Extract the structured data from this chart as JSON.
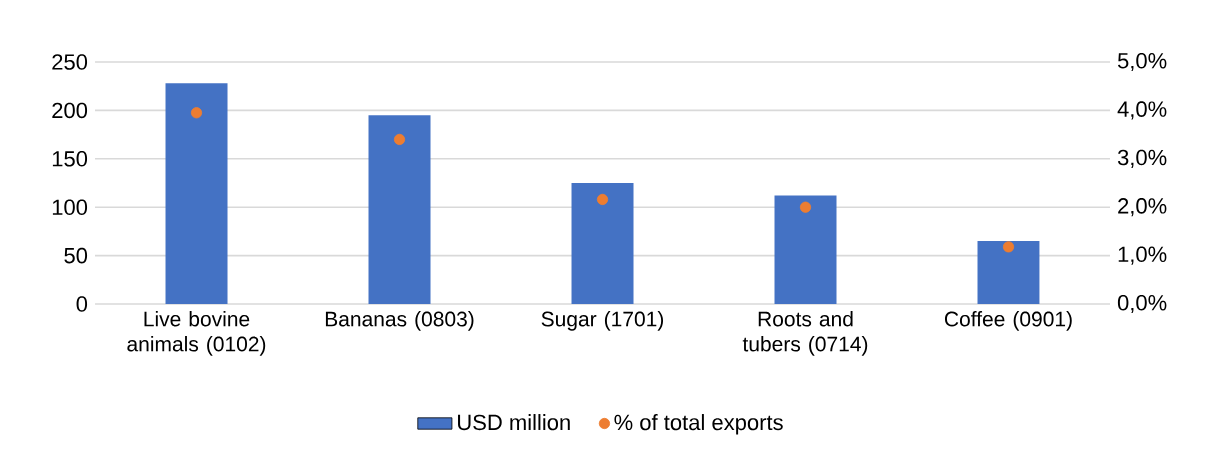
{
  "chart_data": {
    "type": "bar",
    "categories": [
      "Live bovine animals (0102)",
      "Bananas  (0803)",
      "Sugar (1701)",
      "Roots and tubers (0714)",
      "Coffee  (0901)"
    ],
    "series": [
      {
        "name": "USD million",
        "color": "#4472c4",
        "values": [
          228,
          195,
          125,
          112,
          65
        ]
      },
      {
        "name": "% of total exports",
        "color": "#ed7d31",
        "type": "scatter",
        "axis": "y2",
        "values": [
          3.95,
          3.4,
          2.16,
          2.0,
          1.18
        ]
      }
    ],
    "ylim": [
      0,
      250
    ],
    "yticks": [
      0,
      50,
      100,
      150,
      200,
      250
    ],
    "y2lim": [
      0,
      5
    ],
    "y2ticks": [
      {
        "value": 0,
        "label": "0,0%"
      },
      {
        "value": 1,
        "label": "1,0%"
      },
      {
        "value": 2,
        "label": "2,0%"
      },
      {
        "value": 3,
        "label": "3,0%"
      },
      {
        "value": 4,
        "label": "4,0%"
      },
      {
        "value": 5,
        "label": "5,0%"
      }
    ],
    "grid": "y",
    "legend": "bottom",
    "marker": "circle"
  }
}
